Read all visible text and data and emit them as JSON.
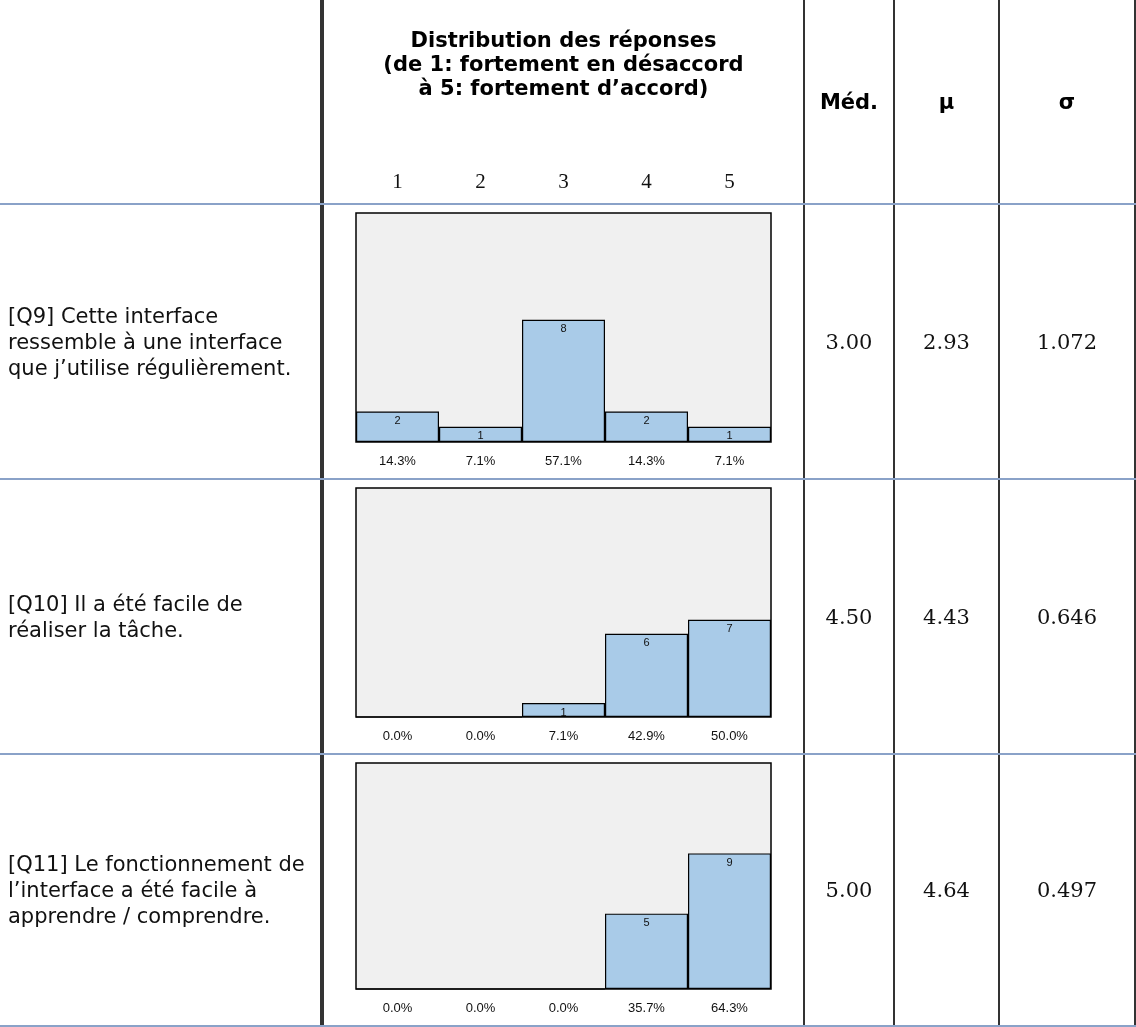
{
  "chart_data": [
    {
      "type": "other",
      "title": "Distribution des réponses\n(de 1: fortement en désaccord\nà 5: fortement d’accord)",
      "annotations": [
        "Méd.",
        "μ",
        "σ"
      ]
    },
    {
      "type": "bar",
      "title": "[Q9] Cette interface ressemble à une interface que j’utilise régulièrement.",
      "categories": [
        "1",
        "2",
        "3",
        "4",
        "5"
      ],
      "tick_labels": "x",
      "values": [
        2,
        1,
        8,
        2,
        1
      ],
      "color": "#a9cbe8",
      "value_labels": [
        "2",
        "1",
        "8",
        "2",
        "1"
      ],
      "ylim": [
        0,
        15
      ],
      "annotations": [
        "3.00",
        "2.93",
        "1.072",
        {
          "text": "14.3%",
          "x": "1",
          "y": 0
        },
        {
          "text": "7.1%",
          "x": "2",
          "y": 0
        },
        {
          "text": "57.1%",
          "x": "3",
          "y": 0
        },
        {
          "text": "14.3%",
          "x": "4",
          "y": 0
        },
        {
          "text": "7.1%",
          "x": "5",
          "y": 0
        }
      ]
    },
    {
      "type": "bar",
      "title": "[Q10] Il a été facile de réaliser la tâche.",
      "categories": [
        "1",
        "2",
        "3",
        "4",
        "5"
      ],
      "tick_labels": false,
      "values": [
        0,
        0,
        1,
        6,
        7
      ],
      "color": "#a9cbe8",
      "value_labels": [
        null,
        null,
        "1",
        "6",
        "7"
      ],
      "ylim": [
        0,
        16.5
      ],
      "annotations": [
        "4.50",
        "4.43",
        "0.646",
        {
          "text": "0.0%",
          "x": "1",
          "y": 0
        },
        {
          "text": "0.0%",
          "x": "2",
          "y": 0
        },
        {
          "text": "7.1%",
          "x": "3",
          "y": 0
        },
        {
          "text": "42.9%",
          "x": "4",
          "y": 0
        },
        {
          "text": "50.0%",
          "x": "5",
          "y": 0
        }
      ]
    },
    {
      "type": "bar",
      "title": "[Q11] Le fonctionnement de l’interface a été facile à apprendre / comprendre.",
      "categories": [
        "1",
        "2",
        "3",
        "4",
        "5"
      ],
      "tick_labels": false,
      "values": [
        0,
        0,
        0,
        5,
        9
      ],
      "color": "#a9cbe8",
      "value_labels": [
        null,
        null,
        null,
        "5",
        "9"
      ],
      "ylim": [
        0,
        15
      ],
      "annotations": [
        "5.00",
        "4.64",
        "0.497",
        {
          "text": "0.0%",
          "x": "1",
          "y": 0
        },
        {
          "text": "0.0%",
          "x": "2",
          "y": 0
        },
        {
          "text": "0.0%",
          "x": "3",
          "y": 0
        },
        {
          "text": "35.7%",
          "x": "4",
          "y": 0
        },
        {
          "text": "64.3%",
          "x": "5",
          "y": 0
        }
      ]
    }
  ]
}
